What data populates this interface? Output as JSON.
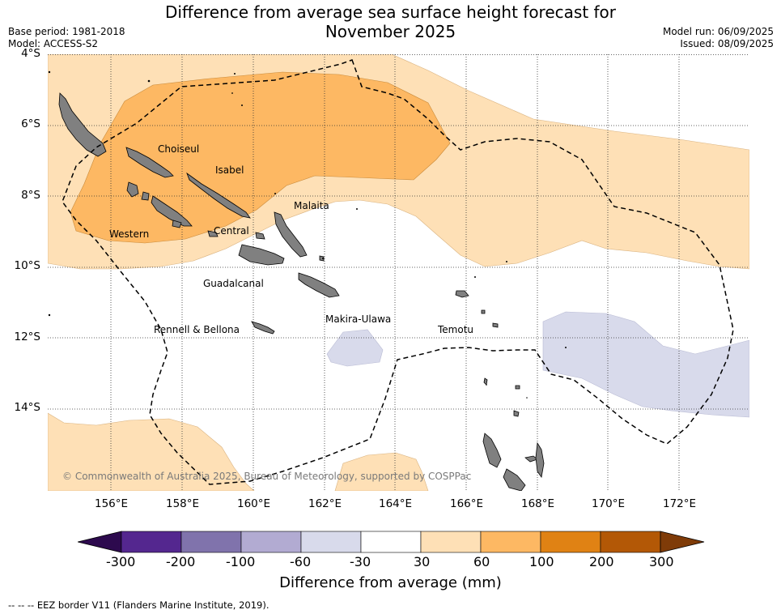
{
  "title": {
    "line1": "Difference from average sea surface height forecast for",
    "line2": "November 2025"
  },
  "meta_left": {
    "base_period": "Base period: 1981-2018",
    "model": "Model: ACCESS-S2"
  },
  "meta_right": {
    "model_run": "Model run: 06/09/2025",
    "issued": "Issued: 08/09/2025"
  },
  "map": {
    "lat_labels": [
      "4°S",
      "6°S",
      "8°S",
      "10°S",
      "12°S",
      "14°S"
    ],
    "lon_labels": [
      "156°E",
      "158°E",
      "160°E",
      "162°E",
      "164°E",
      "166°E",
      "168°E",
      "170°E",
      "172°E"
    ],
    "province_labels": [
      "Choiseul",
      "Isabel",
      "Malaita",
      "Western",
      "Central",
      "Guadalcanal",
      "Makira-Ulawa",
      "Rennell & Bellona",
      "Temotu"
    ],
    "copyright": "© Commonwealth of Australia 2025, Bureau of Meteorology, supported by COSPPac",
    "land_color": "#808080",
    "gridline_style": "dotted",
    "eez_border_style": "dashed"
  },
  "colorbar": {
    "title": "Difference from average (mm)",
    "ticks": [
      "-300",
      "-200",
      "-100",
      "-60",
      "-30",
      "30",
      "60",
      "100",
      "200",
      "300"
    ],
    "colors": [
      "#2d0a4e",
      "#54278f",
      "#8073ac",
      "#b2abd2",
      "#d8daeb",
      "#ffffff",
      "#fee0b6",
      "#fdb863",
      "#e08214",
      "#b35806",
      "#7f3b08"
    ]
  },
  "footnote": "--  --  -- EEZ border V11 (Flanders Marine Institute, 2019)."
}
